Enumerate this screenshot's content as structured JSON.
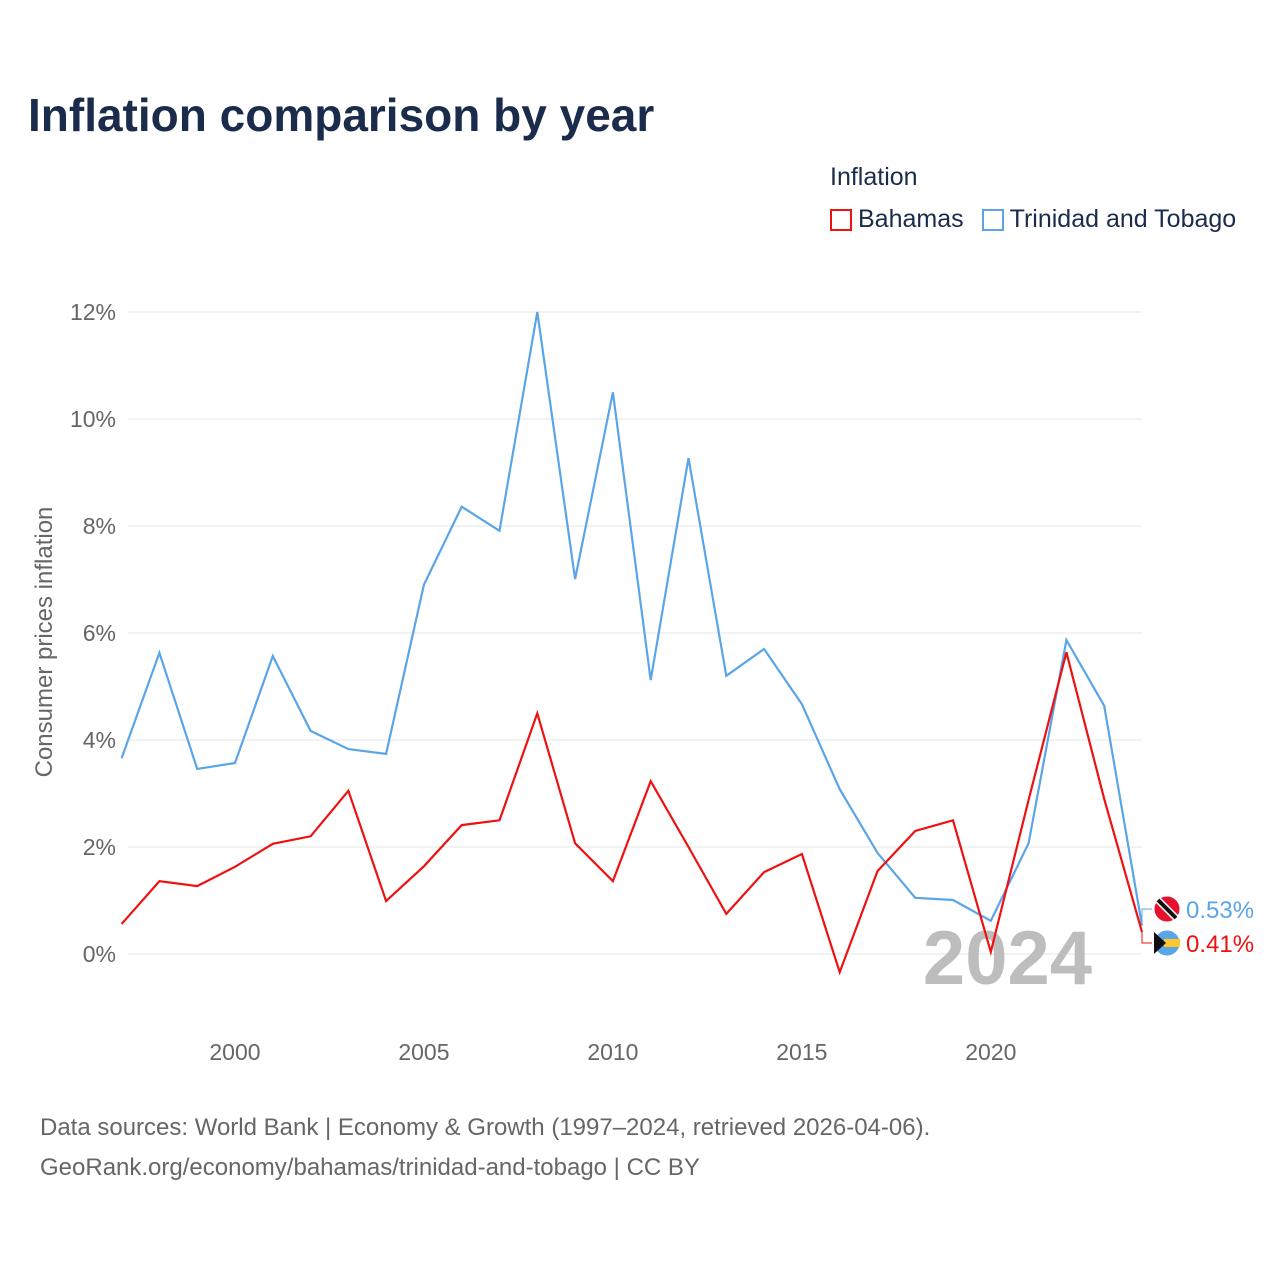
{
  "title": "Inflation comparison by year",
  "legend": {
    "title": "Inflation",
    "items": [
      {
        "label": "Bahamas",
        "color": "#ee1111"
      },
      {
        "label": "Trinidad and Tobago",
        "color": "#5aa5e8"
      }
    ]
  },
  "year_watermark": "2024",
  "source": {
    "line1": "Data sources: World Bank | Economy & Growth (1997–2024, retrieved 2026-04-06).",
    "line2": "GeoRank.org/economy/bahamas/trinidad-and-tobago | CC BY"
  },
  "chart_data": {
    "type": "line",
    "title": "Inflation comparison by year",
    "ylabel": "Consumer prices inflation",
    "xlabel": "",
    "ylim": [
      -1.5,
      12.5
    ],
    "xlim": [
      1997,
      2024
    ],
    "yticks": [
      0,
      2,
      4,
      6,
      8,
      10,
      12
    ],
    "ytick_labels": [
      "0%",
      "2%",
      "4%",
      "6%",
      "8%",
      "10%",
      "12%"
    ],
    "xticks": [
      2000,
      2005,
      2010,
      2015,
      2020
    ],
    "xtick_labels": [
      "2000",
      "2005",
      "2010",
      "2015",
      "2020"
    ],
    "grid": true,
    "legend_position": "top-right",
    "x": [
      1997,
      1998,
      1999,
      2000,
      2001,
      2002,
      2003,
      2004,
      2005,
      2006,
      2007,
      2008,
      2009,
      2010,
      2011,
      2012,
      2013,
      2014,
      2015,
      2016,
      2017,
      2018,
      2019,
      2020,
      2021,
      2022,
      2023,
      2024
    ],
    "series": [
      {
        "name": "Bahamas",
        "color": "#ee1111",
        "end_label": "0.41%",
        "values": [
          0.56,
          1.36,
          1.27,
          1.63,
          2.06,
          2.2,
          3.05,
          0.99,
          1.64,
          2.41,
          2.5,
          4.5,
          2.07,
          1.36,
          3.23,
          2.0,
          0.75,
          1.53,
          1.87,
          -0.34,
          1.55,
          2.3,
          2.5,
          0.04,
          2.88,
          5.64,
          2.9,
          0.41
        ]
      },
      {
        "name": "Trinidad and Tobago",
        "color": "#5aa5e8",
        "end_label": "0.53%",
        "values": [
          3.66,
          5.63,
          3.46,
          3.57,
          5.57,
          4.17,
          3.83,
          3.74,
          6.9,
          8.36,
          7.91,
          12.0,
          7.01,
          10.5,
          5.12,
          9.27,
          5.2,
          5.7,
          4.67,
          3.08,
          1.89,
          1.05,
          1.01,
          0.62,
          2.07,
          5.87,
          4.64,
          0.53
        ]
      }
    ]
  }
}
